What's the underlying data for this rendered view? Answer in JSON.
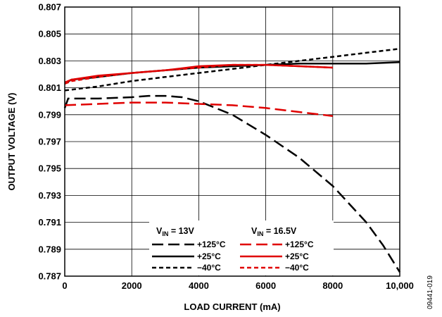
{
  "figure_id": "09441-019",
  "chart_data": {
    "type": "line",
    "title": "",
    "xlabel": "LOAD CURRENT (mA)",
    "ylabel": "OUTPUT VOLTAGE (V)",
    "xlim": [
      0,
      10000
    ],
    "ylim": [
      0.787,
      0.807
    ],
    "x_ticks": [
      0,
      2000,
      4000,
      6000,
      8000,
      10000
    ],
    "x_tick_labels": [
      "0",
      "2000",
      "4000",
      "6000",
      "8000",
      "10,000"
    ],
    "y_ticks": [
      0.787,
      0.789,
      0.791,
      0.793,
      0.795,
      0.797,
      0.799,
      0.801,
      0.803,
      0.805,
      0.807
    ],
    "y_tick_labels": [
      "0.787",
      "0.789",
      "0.791",
      "0.793",
      "0.795",
      "0.797",
      "0.799",
      "0.801",
      "0.803",
      "0.805",
      "0.807"
    ],
    "grid": true,
    "legend": {
      "placement": "bottom-center",
      "group_headers": [
        {
          "main": "V",
          "sub": "IN",
          "rest": " = 13V"
        },
        {
          "main": "V",
          "sub": "IN",
          "rest": " = 16.5V"
        }
      ]
    },
    "series": [
      {
        "name": "+125°C",
        "group": 0,
        "color": "#000000",
        "style": "longdash",
        "x": [
          0,
          100,
          1000,
          2000,
          2500,
          3000,
          3500,
          4000,
          5000,
          6000,
          7000,
          8000,
          9000,
          9500,
          10000
        ],
        "y": [
          0.7995,
          0.8002,
          0.8002,
          0.8003,
          0.8004,
          0.8004,
          0.8003,
          0.8,
          0.799,
          0.7975,
          0.7958,
          0.7937,
          0.791,
          0.7893,
          0.7873
        ]
      },
      {
        "name": "+25°C",
        "group": 0,
        "color": "#000000",
        "style": "solid",
        "x": [
          0,
          200,
          1000,
          2000,
          3000,
          4000,
          5000,
          6000,
          7000,
          8000,
          9000,
          10000
        ],
        "y": [
          0.8013,
          0.8016,
          0.8018,
          0.8021,
          0.8023,
          0.8025,
          0.8026,
          0.8027,
          0.8028,
          0.8028,
          0.8028,
          0.8029
        ]
      },
      {
        "name": "−40°C",
        "group": 0,
        "color": "#000000",
        "style": "shortdash",
        "x": [
          0,
          1000,
          2000,
          3000,
          4000,
          5000,
          6000,
          7000,
          8000,
          9000,
          10000
        ],
        "y": [
          0.8008,
          0.8011,
          0.8015,
          0.8018,
          0.8021,
          0.8024,
          0.8027,
          0.803,
          0.8033,
          0.8036,
          0.8039
        ]
      },
      {
        "name": "+125°C",
        "group": 1,
        "color": "#e00000",
        "style": "longdash",
        "x": [
          0,
          1000,
          2000,
          3000,
          4000,
          5000,
          6000,
          7000,
          8000
        ],
        "y": [
          0.7997,
          0.7998,
          0.7999,
          0.7999,
          0.7998,
          0.7997,
          0.7995,
          0.7992,
          0.7989
        ]
      },
      {
        "name": "+25°C",
        "group": 1,
        "color": "#e00000",
        "style": "solid",
        "x": [
          0,
          200,
          1000,
          2000,
          3000,
          4000,
          5000,
          6000,
          7000,
          8000
        ],
        "y": [
          0.8014,
          0.8016,
          0.8019,
          0.8021,
          0.8023,
          0.8026,
          0.8027,
          0.8027,
          0.8026,
          0.8025
        ]
      },
      {
        "name": "−40°C",
        "group": 1,
        "color": "#e00000",
        "style": "shortdash",
        "x": [
          0,
          200,
          1000,
          2000,
          3000,
          4000,
          5000,
          6000,
          7000,
          8000
        ],
        "y": [
          0.8013,
          0.8015,
          0.8018,
          0.8021,
          0.8023,
          0.8025,
          0.8027,
          0.8027,
          0.8026,
          0.8025
        ]
      }
    ]
  }
}
